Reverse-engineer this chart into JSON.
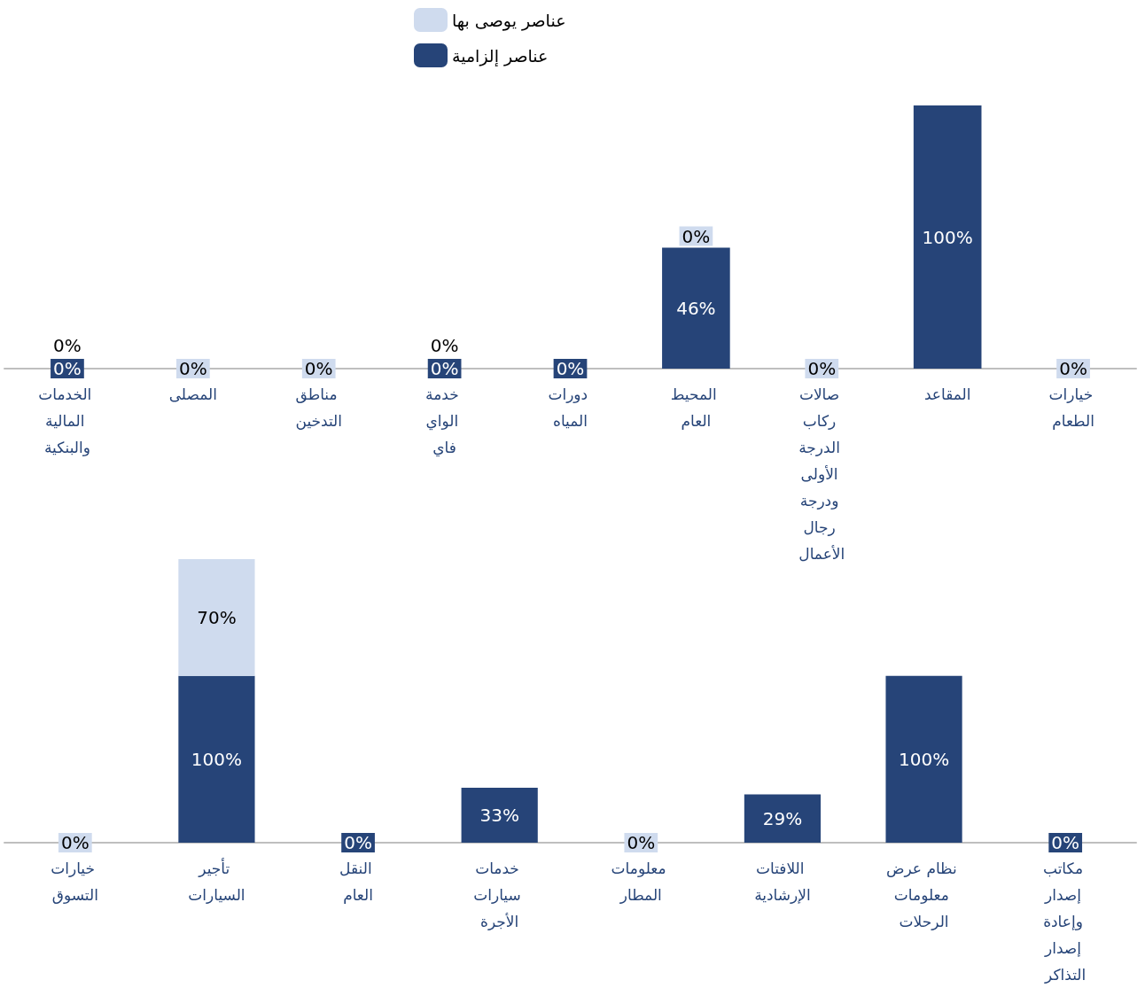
{
  "chart_data": [
    {
      "type": "bar",
      "stacked": true,
      "legend": "top",
      "categories": [
        "الخدمات المالية والبنكية",
        "المصلى",
        "مناطق التدخين",
        "خدمة الواي فاي",
        "دورات المياه",
        "المحيط العام",
        "صالات ركاب الدرجة الأولى ودرجة رجال الأعمال",
        "المقاعد",
        "خيارات الطعام"
      ],
      "series": [
        {
          "name": "عناصر إلزامية",
          "color": "#264478",
          "values": [
            0,
            null,
            null,
            0,
            0,
            46,
            null,
            100,
            null
          ],
          "value_labels": [
            "0%",
            null,
            null,
            "0%",
            "0%",
            "46%",
            null,
            "100%",
            null
          ]
        },
        {
          "name": "عناصر يوصى بها",
          "color": "#cfdbee",
          "values": [
            0,
            0,
            0,
            0,
            null,
            0,
            0,
            null,
            0
          ],
          "value_labels": [
            "0%",
            "0%",
            "0%",
            "0%",
            null,
            "0%",
            "0%",
            null,
            "0%"
          ]
        }
      ]
    },
    {
      "type": "bar",
      "stacked": true,
      "categories": [
        "خيارات التسوق",
        "تأجير السيارات",
        "النقل العام",
        "خدمات سيارات الأجرة",
        "معلومات المطار",
        "اللافتات الإرشادية",
        "نظام عرض معلومات الرحلات",
        "مكاتب إصدار وإعادة إصدار التذاكر"
      ],
      "series": [
        {
          "color": "#264478",
          "values": [
            null,
            100,
            0,
            33,
            null,
            29,
            100,
            0
          ],
          "value_labels": [
            null,
            "100%",
            "0%",
            "33%",
            null,
            "29%",
            "100%",
            "0%"
          ]
        },
        {
          "color": "#cfdbee",
          "values": [
            0,
            70,
            null,
            null,
            0,
            null,
            null,
            null
          ],
          "value_labels": [
            "0%",
            "70%",
            null,
            null,
            "0%",
            null,
            null,
            null
          ]
        }
      ]
    }
  ]
}
